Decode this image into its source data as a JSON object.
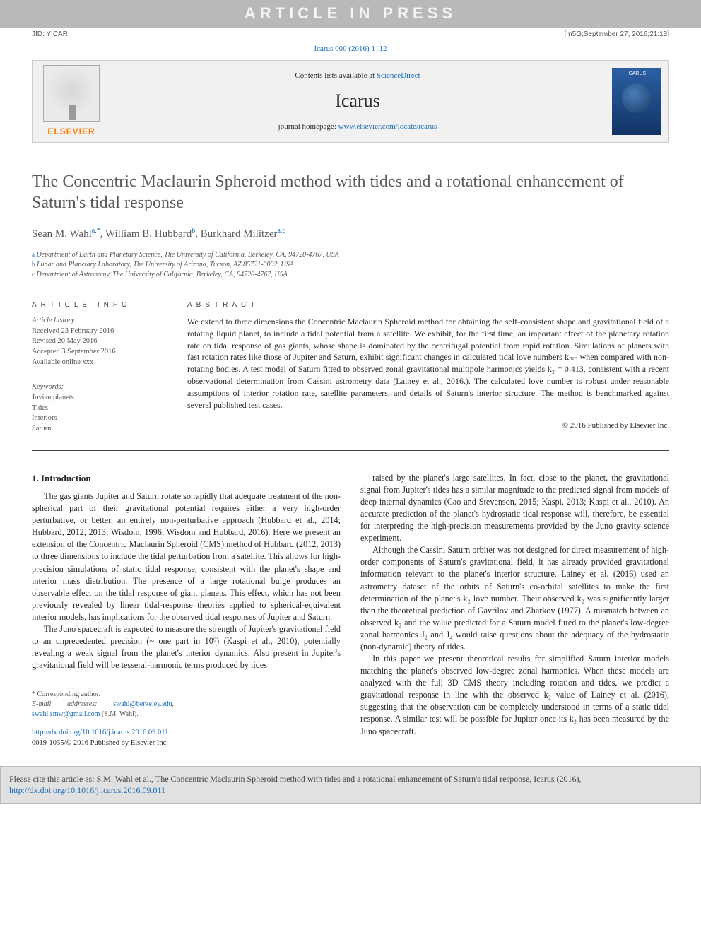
{
  "banner": {
    "text": "ARTICLE IN PRESS"
  },
  "header": {
    "jid": "JID: YICAR",
    "stamp": "[m5G;September 27, 2016;21:13]",
    "citation_prefix": "Icarus 000 (2016) 1–12"
  },
  "journal": {
    "contents_label": "Contents lists available at ",
    "contents_link": "ScienceDirect",
    "name": "Icarus",
    "home_label": "journal homepage: ",
    "home_url": "www.elsevier.com/locate/icarus",
    "publisher": "ELSEVIER",
    "cover_label": "ICARUS"
  },
  "title": "The Concentric Maclaurin Spheroid method with tides and a rotational enhancement of Saturn's tidal response",
  "authors_html": "Sean M. Wahl",
  "affiliations": {
    "a": "Department of Earth and Planetary Science, The University of California, Berkeley, CA, 94720-4767, USA",
    "b": "Lunar and Planetary Laboratory, The University of Arizona, Tucson, AZ 85721-0092, USA",
    "c": "Department of Astronomy, The University of California, Berkeley, CA, 94720-4767, USA"
  },
  "article_info": {
    "heading": "ARTICLE INFO",
    "history_label": "Article history:",
    "received": "Received 23 February 2016",
    "revised": "Revised 20 May 2016",
    "accepted": "Accepted 3 September 2016",
    "online": "Available online xxx",
    "keywords_label": "Keywords:",
    "keywords": [
      "Jovian planets",
      "Tides",
      "Interiors",
      "Saturn"
    ]
  },
  "abstract": {
    "heading": "ABSTRACT",
    "text": "We extend to three dimensions the Concentric Maclaurin Spheroid method for obtaining the self-consistent shape and gravitational field of a rotating liquid planet, to include a tidal potential from a satellite. We exhibit, for the first time, an important effect of the planetary rotation rate on tidal response of gas giants, whose shape is dominated by the centrifugal potential from rapid rotation. Simulations of planets with fast rotation rates like those of Jupiter and Saturn, exhibit significant changes in calculated tidal love numbers kₙₘ when compared with non-rotating bodies. A test model of Saturn fitted to observed zonal gravitational multipole harmonics yields k₂ = 0.413, consistent with a recent observational determination from Cassini astrometry data (Lainey et al., 2016.). The calculated love number is robust under reasonable assumptions of interior rotation rate, satellite parameters, and details of Saturn's interior structure. The method is benchmarked against several published test cases.",
    "copyright": "© 2016 Published by Elsevier Inc."
  },
  "section1": {
    "heading": "1. Introduction",
    "p1": "The gas giants Jupiter and Saturn rotate so rapidly that adequate treatment of the non-spherical part of their gravitational potential requires either a very high-order perturbative, or better, an entirely non-perturbative approach (Hubbard et al., 2014; Hubbard, 2012, 2013; Wisdom, 1996; Wisdom and Hubbard, 2016). Here we present an extension of the Concentric Maclaurin Spheroid (CMS) method of Hubbard (2012, 2013) to three dimensions to include the tidal perturbation from a satellite. This allows for high-precision simulations of static tidal response, consistent with the planet's shape and interior mass distribution. The presence of a large rotational bulge produces an observable effect on the tidal response of giant planets. This effect, which has not been previously revealed by linear tidal-response theories applied to spherical-equivalent interior models, has implications for the observed tidal responses of Jupiter and Saturn.",
    "p2": "The Juno spacecraft is expected to measure the strength of Jupiter's gravitational field to an unprecedented precision (~ one part in 10⁹) (Kaspi et al., 2010), potentially revealing a weak signal from the planet's interior dynamics. Also present in Jupiter's gravitational field will be tesseral-harmonic terms produced by tides",
    "p3": "raised by the planet's large satellites. In fact, close to the planet, the gravitational signal from Jupiter's tides has a similar magnitude to the predicted signal from models of deep internal dynamics (Cao and Stevenson, 2015; Kaspi, 2013; Kaspi et al., 2010). An accurate prediction of the planet's hydrostatic tidal response will, therefore, be essential for interpreting the high-precision measurements provided by the Juno gravity science experiment.",
    "p4": "Although the Cassini Saturn orbiter was not designed for direct measurement of high-order components of Saturn's gravitational field, it has already provided gravitational information relevant to the planet's interior structure. Lainey et al. (2016) used an astrometry dataset of the orbits of Saturn's co-orbital satellites to make the first determination of the planet's k₂ love number. Their observed k₂ was significantly larger than the theoretical prediction of Gavrilov and Zharkov (1977). A mismatch between an observed k₂ and the value predicted for a Saturn model fitted to the planet's low-degree zonal harmonics J₂ and J₄ would raise questions about the adequacy of the hydrostatic (non-dynamic) theory of tides.",
    "p5": "In this paper we present theoretical results for simplified Saturn interior models matching the planet's observed low-degree zonal harmonics. When these models are analyzed with the full 3D CMS theory including rotation and tides, we predict a gravitational response in line with the observed k₂ value of Lainey et al. (2016), suggesting that the observation can be completely understood in terms of a static tidal response. A similar test will be possible for Jupiter once its k₂ has been measured by the Juno spacecraft."
  },
  "footnote": {
    "corr": "* Corresponding author.",
    "email_label": "E-mail addresses: ",
    "email1": "swahl@berkeley.edu",
    "email2": "swahl.smw@gmail.com",
    "email_tail": " (S.M. Wahl)."
  },
  "doi": {
    "url": "http://dx.doi.org/10.1016/j.icarus.2016.09.011",
    "issn": "0019-1035/© 2016 Published by Elsevier Inc."
  },
  "citebox": {
    "text": "Please cite this article as: S.M. Wahl et al., The Concentric Maclaurin Spheroid method with tides and a rotational enhancement of Saturn's tidal response, Icarus (2016), ",
    "link": "http://dx.doi.org/10.1016/j.icarus.2016.09.011"
  },
  "colors": {
    "link": "#1a6bb8",
    "banner_bg": "#b9b9b9",
    "elsevier": "#ff7a00",
    "citebox_bg": "#e1e1e1"
  }
}
